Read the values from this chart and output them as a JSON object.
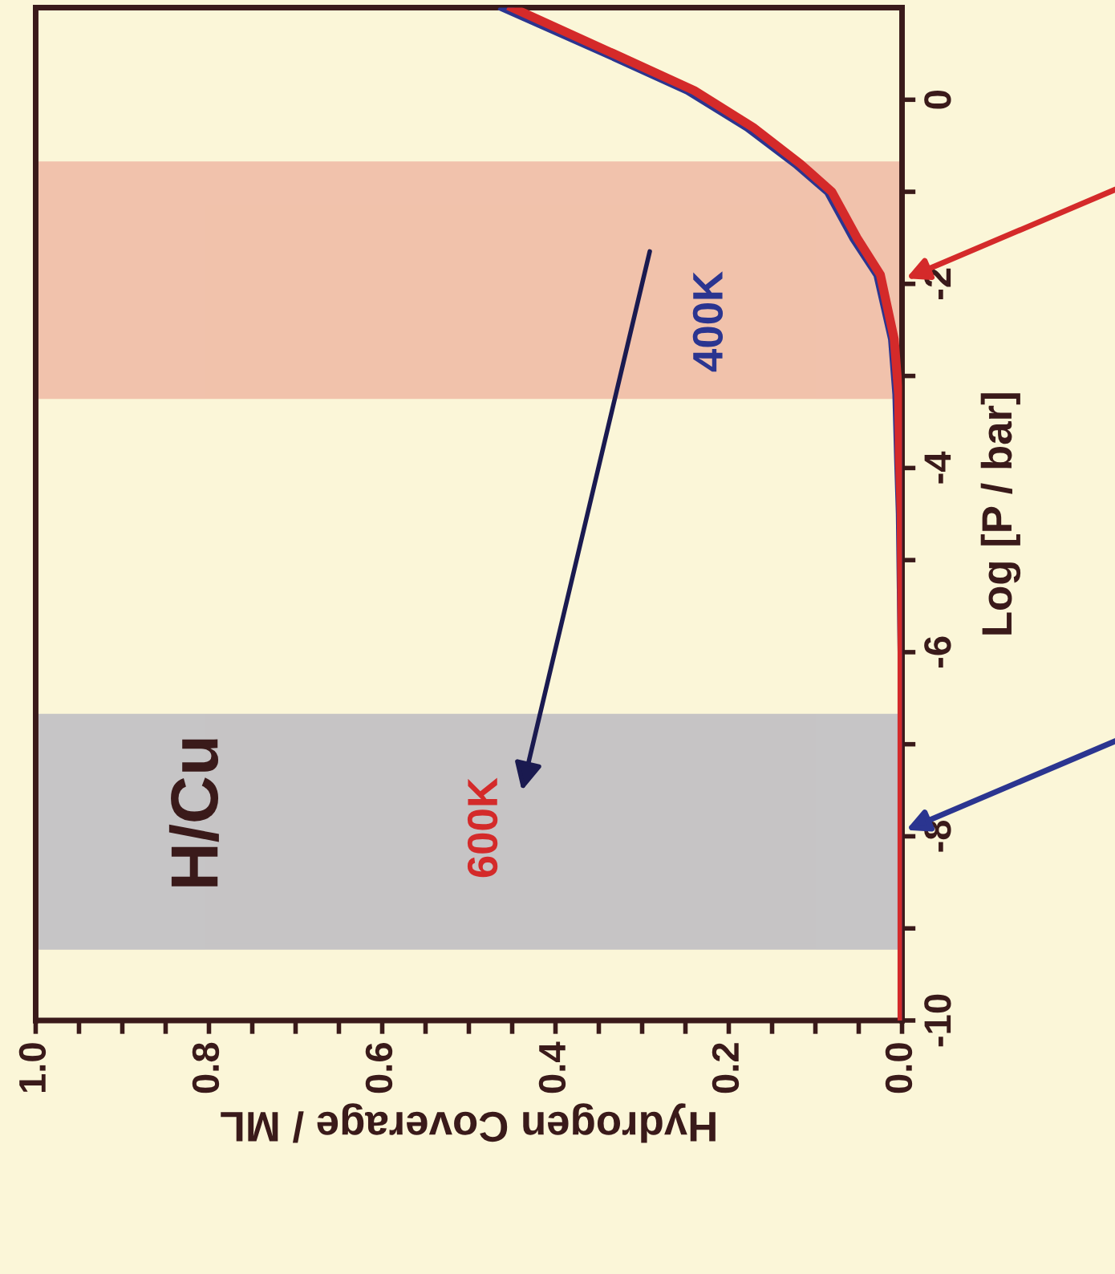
{
  "chart_data": {
    "type": "line",
    "xlabel": "Hydrogen Coverage / ML",
    "ylabel": "Log [P / bar]",
    "xlim": [
      1.0,
      0
    ],
    "ylim": [
      -10,
      1
    ],
    "xticks": [
      {
        "value": 0,
        "label": "0.0"
      },
      {
        "value": 0.05,
        "label": null
      },
      {
        "value": 0.1,
        "label": null
      },
      {
        "value": 0.15,
        "label": null
      },
      {
        "value": 0.2,
        "label": "0.2"
      },
      {
        "value": 0.25,
        "label": null
      },
      {
        "value": 0.3,
        "label": null
      },
      {
        "value": 0.35,
        "label": null
      },
      {
        "value": 0.4,
        "label": "0.4"
      },
      {
        "value": 0.45,
        "label": null
      },
      {
        "value": 0.5,
        "label": null
      },
      {
        "value": 0.55,
        "label": null
      },
      {
        "value": 0.6,
        "label": "0.6"
      },
      {
        "value": 0.65,
        "label": null
      },
      {
        "value": 0.7,
        "label": null
      },
      {
        "value": 0.75,
        "label": null
      },
      {
        "value": 0.8,
        "label": "0.8"
      },
      {
        "value": 0.85,
        "label": null
      },
      {
        "value": 0.9,
        "label": null
      },
      {
        "value": 0.95,
        "label": null
      },
      {
        "value": 1.0,
        "label": "1.0"
      }
    ],
    "yticks": [
      {
        "value": -10,
        "label": "-10"
      },
      {
        "value": -9,
        "label": null
      },
      {
        "value": -8,
        "label": "-8"
      },
      {
        "value": -7,
        "label": null
      },
      {
        "value": -6,
        "label": "-6"
      },
      {
        "value": -5,
        "label": null
      },
      {
        "value": -4,
        "label": "-4"
      },
      {
        "value": -3,
        "label": null
      },
      {
        "value": -2,
        "label": "-2"
      },
      {
        "value": -1,
        "label": null
      },
      {
        "value": 0,
        "label": "0"
      }
    ],
    "series": [
      {
        "color": "#2b3590",
        "values": [
          -10,
          -6,
          -4.5,
          -3.9,
          -3.2,
          -2.6,
          -1.9,
          -1.5,
          -1.0,
          -0.7,
          -0.3,
          0.1,
          0.5,
          1.0
        ],
        "x": [
          0,
          0,
          0.002,
          0.004,
          0.006,
          0.011,
          0.028,
          0.056,
          0.085,
          0.122,
          0.178,
          0.247,
          0.34,
          0.46
        ]
      },
      {
        "color": "#d42a2a",
        "values": [
          -10,
          -6,
          -4.5,
          -3.9,
          -3.2,
          -2.6,
          -1.9,
          -1.5,
          -1.0,
          -0.7,
          -0.3,
          0.1,
          0.5,
          1.0
        ],
        "x": [
          0,
          0,
          0.001,
          0.003,
          0.004,
          0.009,
          0.025,
          0.052,
          0.081,
          0.117,
          0.172,
          0.24,
          0.333,
          0.45
        ]
      }
    ],
    "bands": [
      {
        "axis": "y",
        "from": -3.22,
        "to": -0.7,
        "color": "#d42a2a"
      },
      {
        "axis": "y",
        "from": -9.2,
        "to": -6.7,
        "color": "#2b3590"
      }
    ],
    "annotations": [
      "400K",
      "600K",
      "H/Cu"
    ],
    "grid": false,
    "legend": false,
    "marker": "none",
    "line_style": "solid"
  }
}
